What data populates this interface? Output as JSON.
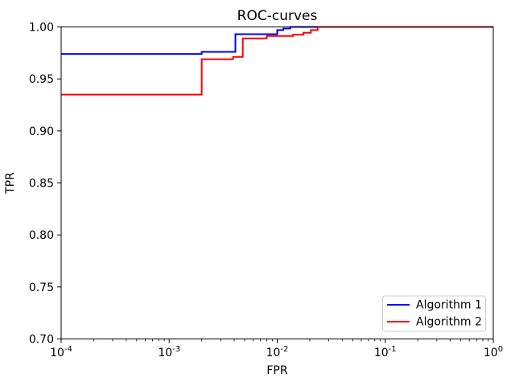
{
  "figure": {
    "title": "ROC-curves",
    "xlabel": "FPR",
    "ylabel": "TPR"
  },
  "chart_data": {
    "type": "line",
    "subtype": "roc-step-curves",
    "title": "ROC-curves",
    "xlabel": "FPR",
    "ylabel": "TPR",
    "xscale": "log",
    "xlim": [
      0.0001,
      1.0
    ],
    "ylim": [
      0.7,
      1.0
    ],
    "xticks": [
      0.0001,
      0.001,
      0.01,
      0.1,
      1.0
    ],
    "xtick_labels_unicode": [
      "10⁻⁴",
      "10⁻³",
      "10⁻²",
      "10⁻¹",
      "10⁰"
    ],
    "yticks": [
      0.7,
      0.75,
      0.8,
      0.85,
      0.9,
      0.95,
      1.0
    ],
    "grid": false,
    "legend_position": "lower right",
    "axes_color": "#000000",
    "background_color": "#ffffff",
    "legend_edge_color": "#cccccc",
    "series": [
      {
        "name": "Algorithm 1",
        "color": "#0000ff",
        "points": [
          [
            0.0001,
            0.974
          ],
          [
            0.002,
            0.974
          ],
          [
            0.002,
            0.976
          ],
          [
            0.0041,
            0.976
          ],
          [
            0.0041,
            0.993
          ],
          [
            0.01,
            0.993
          ],
          [
            0.01,
            0.997
          ],
          [
            0.0114,
            0.997
          ],
          [
            0.0114,
            0.9985
          ],
          [
            0.0132,
            0.9985
          ],
          [
            0.0132,
            1.0
          ],
          [
            1.0,
            1.0
          ]
        ]
      },
      {
        "name": "Algorithm 2",
        "color": "#ff0000",
        "points": [
          [
            0.0001,
            0.935
          ],
          [
            0.002,
            0.935
          ],
          [
            0.002,
            0.969
          ],
          [
            0.0039,
            0.969
          ],
          [
            0.0039,
            0.9712
          ],
          [
            0.0048,
            0.9712
          ],
          [
            0.0048,
            0.989
          ],
          [
            0.008,
            0.989
          ],
          [
            0.008,
            0.9913
          ],
          [
            0.014,
            0.9913
          ],
          [
            0.014,
            0.9926
          ],
          [
            0.0175,
            0.9926
          ],
          [
            0.0175,
            0.9944
          ],
          [
            0.0205,
            0.9944
          ],
          [
            0.0205,
            0.997
          ],
          [
            0.0237,
            0.997
          ],
          [
            0.0237,
            1.0
          ],
          [
            1.0,
            1.0
          ]
        ]
      }
    ]
  }
}
